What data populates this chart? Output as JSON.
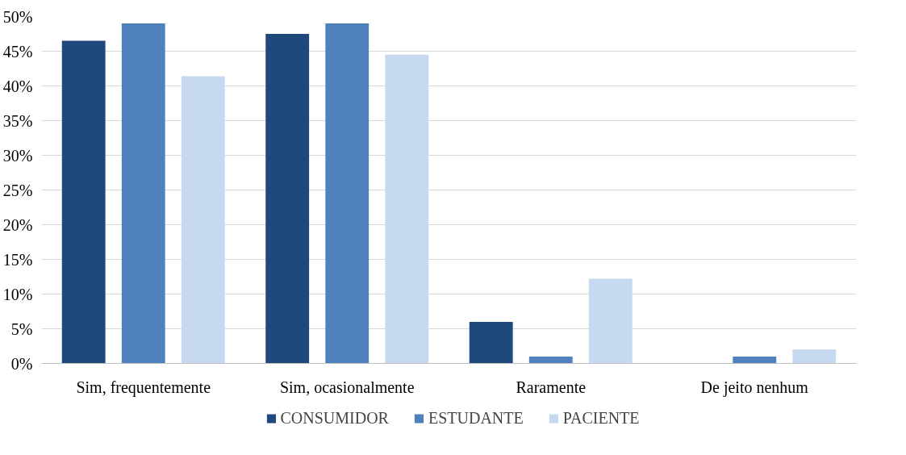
{
  "chart_data": {
    "type": "bar",
    "categories": [
      "Sim, frequentemente",
      "Sim, ocasionalmente",
      "Raramente",
      "De jeito nenhum"
    ],
    "series": [
      {
        "name": "CONSUMIDOR",
        "color": "#1f497d",
        "values": [
          46.5,
          47.5,
          6.0,
          0
        ]
      },
      {
        "name": "ESTUDANTE",
        "color": "#4f81bd",
        "values": [
          49.0,
          49.0,
          1.0,
          1.0
        ]
      },
      {
        "name": "PACIENTE",
        "color": "#c6d9f0",
        "values": [
          41.4,
          44.5,
          12.2,
          2.0
        ]
      }
    ],
    "ylim": [
      0,
      50
    ],
    "yticks": [
      {
        "value": 0,
        "label": "0%"
      },
      {
        "value": 5,
        "label": "5%"
      },
      {
        "value": 10,
        "label": "10%"
      },
      {
        "value": 15,
        "label": "15%"
      },
      {
        "value": 20,
        "label": "20%"
      },
      {
        "value": 25,
        "label": "25%"
      },
      {
        "value": 30,
        "label": "30%"
      },
      {
        "value": 35,
        "label": "35%"
      },
      {
        "value": 40,
        "label": "40%"
      },
      {
        "value": 45,
        "label": "45%"
      },
      {
        "value": 50,
        "label": "50%"
      }
    ],
    "grid": "y",
    "legend": "bottom"
  }
}
